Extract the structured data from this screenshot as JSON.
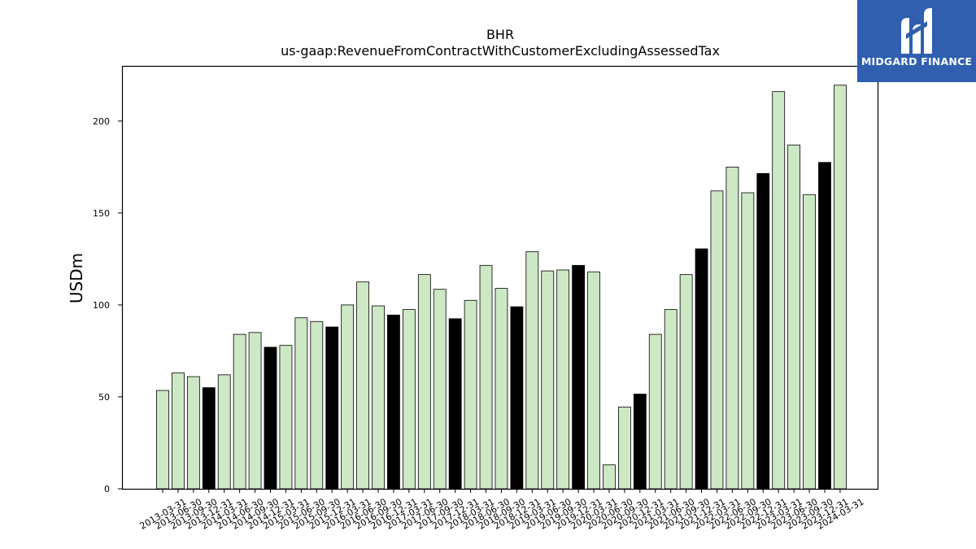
{
  "chart_data": {
    "type": "bar",
    "title": "BHR",
    "subtitle": "us-gaap:RevenueFromContractWithCustomerExcludingAssessedTax",
    "xlabel": "",
    "ylabel": "USDm",
    "ylim": [
      0,
      230
    ],
    "yticks": [
      0,
      50,
      100,
      150,
      200
    ],
    "grid": false,
    "colors": {
      "quarter": "#cde8c4",
      "fiscal_q4": "#000000",
      "edge": "#000000"
    },
    "categories": [
      "2013-03-31",
      "2013-06-30",
      "2013-09-30",
      "2013-12-31",
      "2014-03-31",
      "2014-06-30",
      "2014-09-30",
      "2014-12-31",
      "2015-03-31",
      "2015-06-30",
      "2015-09-30",
      "2015-12-31",
      "2016-03-31",
      "2016-06-30",
      "2016-09-30",
      "2016-12-31",
      "2017-03-31",
      "2017-06-30",
      "2017-09-30",
      "2017-12-31",
      "2018-03-31",
      "2018-06-30",
      "2018-09-30",
      "2018-12-31",
      "2019-03-31",
      "2019-06-30",
      "2019-09-30",
      "2019-12-31",
      "2020-03-31",
      "2020-06-30",
      "2020-09-30",
      "2020-12-31",
      "2021-03-31",
      "2021-06-30",
      "2021-09-30",
      "2021-12-31",
      "2022-03-31",
      "2022-06-30",
      "2022-09-30",
      "2022-12-31",
      "2023-03-31",
      "2023-06-30",
      "2023-09-30",
      "2023-12-31",
      "2024-03-31"
    ],
    "values": [
      53.5,
      63,
      61,
      55,
      62,
      84,
      85,
      77,
      78,
      93,
      91,
      88,
      100,
      112.5,
      99.5,
      94.5,
      97.5,
      116.5,
      108.5,
      92.5,
      102.5,
      121.5,
      109,
      99,
      129,
      118.5,
      119,
      121.5,
      118,
      13,
      44.5,
      51.5,
      84,
      97.5,
      116.5,
      130.5,
      162,
      175,
      161,
      171.5,
      216,
      187,
      160,
      177.5,
      219.5
    ],
    "highlight": [
      false,
      false,
      false,
      true,
      false,
      false,
      false,
      true,
      false,
      false,
      false,
      true,
      false,
      false,
      false,
      true,
      false,
      false,
      false,
      true,
      false,
      false,
      false,
      true,
      false,
      false,
      false,
      true,
      false,
      false,
      false,
      true,
      false,
      false,
      false,
      true,
      false,
      false,
      false,
      true,
      false,
      false,
      false,
      true,
      false
    ]
  },
  "logo": {
    "text": "MIDGARD FINANCE",
    "icon": "midgard-m-logo-icon"
  }
}
